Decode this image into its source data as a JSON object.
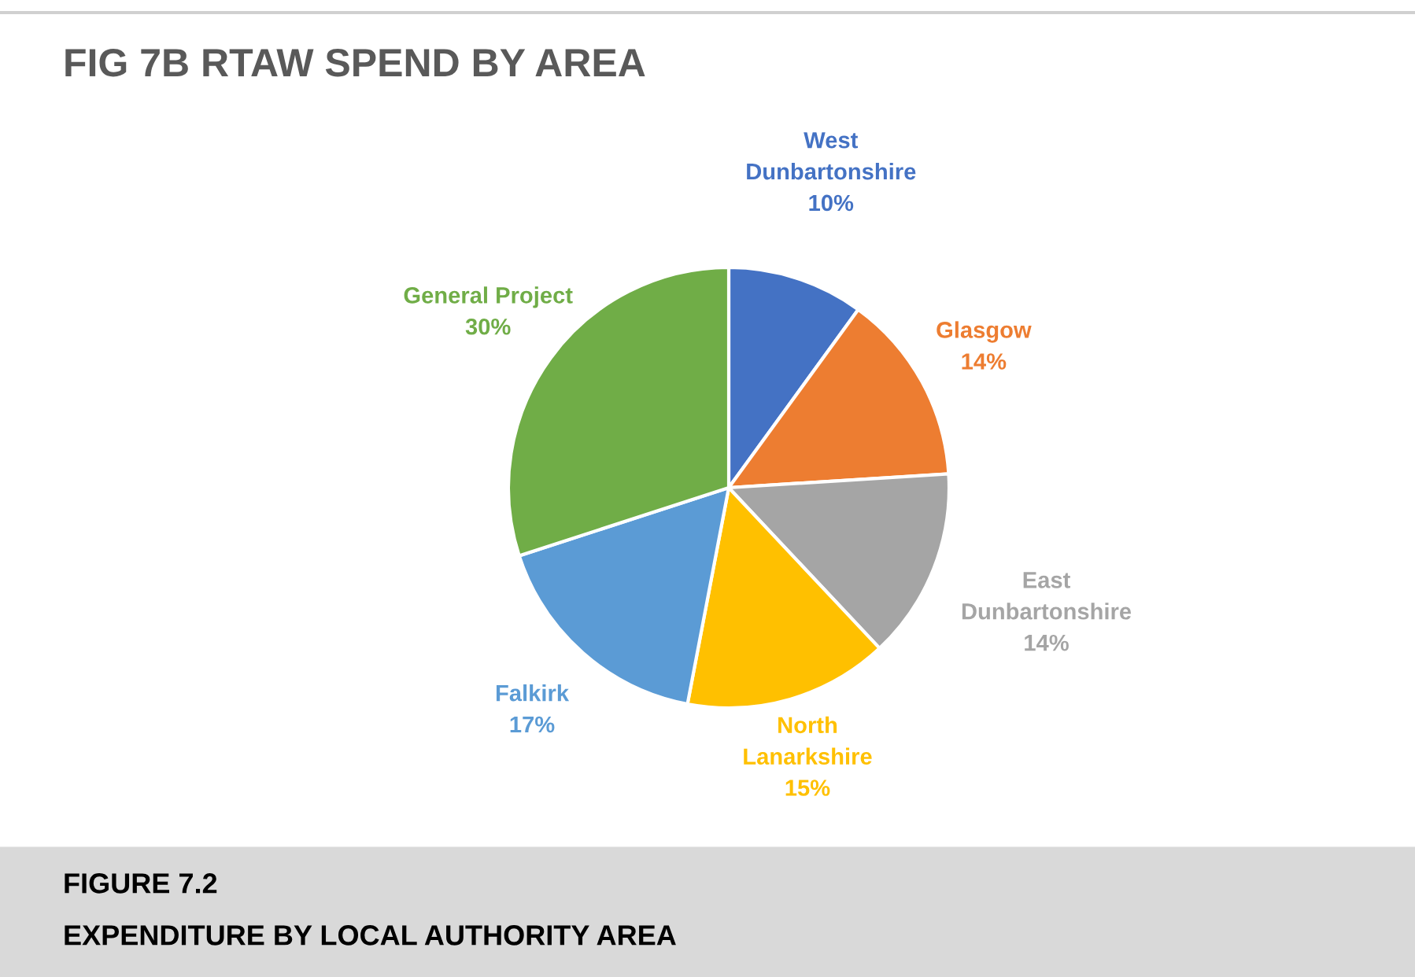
{
  "chart_data": {
    "type": "pie",
    "title": "FIG 7B RTAW SPEND BY AREA",
    "categories": [
      "West\nDunbartonshire",
      "Glasgow",
      "East\nDunbartonshire",
      "North\nLanarkshire",
      "Falkirk",
      "General Project"
    ],
    "values": [
      10,
      14,
      14,
      15,
      17,
      30
    ],
    "value_labels": [
      "10%",
      "14%",
      "14%",
      "15%",
      "17%",
      "30%"
    ],
    "colors": [
      "#4472c4",
      "#ed7d31",
      "#a5a5a5",
      "#ffc000",
      "#5b9bd5",
      "#70ad47"
    ],
    "annotations": [
      "FIGURE 7.2",
      "EXPENDITURE BY LOCAL AUTHORITY AREA"
    ],
    "legend": false
  }
}
